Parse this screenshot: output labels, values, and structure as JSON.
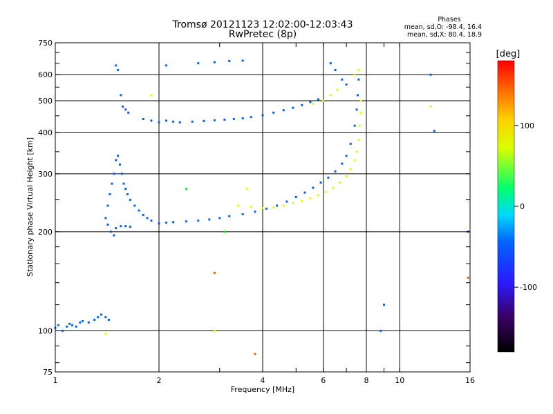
{
  "chart_data": {
    "type": "scatter",
    "title": "Tromsø 20121123 12:02:00-12:03:43",
    "subtitle": "RwPretec (8p)",
    "info": {
      "heading": "Phases",
      "line1": "mean, sd,O: -98.4, 16.4",
      "line2": "mean, sd,X:  80.4, 18.9"
    },
    "xlabel": "Frequency [MHz]",
    "ylabel": "Stationary phase Virtual Height [km]",
    "xscale": "log",
    "yscale": "log",
    "xlim": [
      1,
      16
    ],
    "ylim": [
      75,
      750
    ],
    "x_major_ticks": [
      1,
      2,
      4,
      6,
      8,
      10,
      16
    ],
    "x_tick_labels": [
      "1",
      "2",
      "4",
      "6",
      "8",
      "10",
      "16"
    ],
    "y_ticks": [
      75,
      100,
      200,
      300,
      400,
      500,
      600,
      750
    ],
    "y_tick_labels": [
      "75",
      "100",
      "200",
      "300",
      "400",
      "500",
      "600",
      "750"
    ],
    "grid": true,
    "colorbar": {
      "label": "[deg]",
      "range": [
        -180,
        180
      ],
      "ticks": [
        100,
        0,
        -100
      ],
      "tick_labels": [
        "100",
        "0",
        "-100"
      ]
    },
    "series": [
      {
        "color_phase": -110,
        "points": [
          [
            1.0,
            102
          ],
          [
            1.02,
            104
          ],
          [
            1.05,
            100
          ],
          [
            1.08,
            103
          ],
          [
            1.1,
            105
          ],
          [
            1.12,
            104
          ],
          [
            1.15,
            103
          ],
          [
            1.18,
            106
          ],
          [
            1.2,
            107
          ],
          [
            1.25,
            106
          ],
          [
            1.3,
            108
          ],
          [
            1.33,
            110
          ],
          [
            1.36,
            112
          ],
          [
            1.4,
            110
          ],
          [
            1.43,
            108
          ],
          [
            1.5,
            640
          ],
          [
            1.52,
            620
          ],
          [
            1.55,
            520
          ],
          [
            1.57,
            480
          ],
          [
            1.6,
            470
          ],
          [
            1.63,
            460
          ],
          [
            1.8,
            440
          ],
          [
            1.9,
            435
          ],
          [
            2.0,
            430
          ],
          [
            2.1,
            435
          ],
          [
            2.2,
            432
          ],
          [
            2.3,
            430
          ],
          [
            2.5,
            432
          ],
          [
            2.7,
            434
          ],
          [
            2.9,
            436
          ],
          [
            3.1,
            438
          ],
          [
            3.3,
            440
          ],
          [
            3.5,
            442
          ],
          [
            3.7,
            446
          ],
          [
            4.0,
            452
          ],
          [
            4.3,
            460
          ],
          [
            4.6,
            468
          ],
          [
            4.9,
            476
          ],
          [
            5.2,
            485
          ],
          [
            5.5,
            495
          ],
          [
            5.8,
            505
          ],
          [
            2.1,
            640
          ],
          [
            2.6,
            650
          ],
          [
            2.9,
            655
          ],
          [
            3.2,
            660
          ],
          [
            3.5,
            662
          ],
          [
            1.4,
            220
          ],
          [
            1.42,
            240
          ],
          [
            1.44,
            260
          ],
          [
            1.46,
            280
          ],
          [
            1.48,
            300
          ],
          [
            1.5,
            330
          ],
          [
            1.52,
            340
          ],
          [
            1.54,
            320
          ],
          [
            1.56,
            300
          ],
          [
            1.58,
            280
          ],
          [
            1.6,
            270
          ],
          [
            1.62,
            260
          ],
          [
            1.65,
            250
          ],
          [
            1.7,
            240
          ],
          [
            1.75,
            232
          ],
          [
            1.8,
            225
          ],
          [
            1.85,
            220
          ],
          [
            1.9,
            216
          ],
          [
            2.0,
            212
          ],
          [
            2.1,
            213
          ],
          [
            2.2,
            214
          ],
          [
            2.4,
            215
          ],
          [
            2.6,
            216
          ],
          [
            2.8,
            218
          ],
          [
            3.0,
            220
          ],
          [
            3.2,
            223
          ],
          [
            3.5,
            226
          ],
          [
            3.8,
            230
          ],
          [
            4.1,
            235
          ],
          [
            4.4,
            240
          ],
          [
            4.7,
            247
          ],
          [
            5.0,
            255
          ],
          [
            5.3,
            263
          ],
          [
            5.6,
            272
          ],
          [
            5.9,
            282
          ],
          [
            6.2,
            292
          ],
          [
            6.5,
            305
          ],
          [
            6.8,
            322
          ],
          [
            7.0,
            340
          ],
          [
            7.2,
            370
          ],
          [
            7.4,
            420
          ],
          [
            7.5,
            470
          ],
          [
            7.55,
            520
          ],
          [
            7.6,
            580
          ],
          [
            1.42,
            210
          ],
          [
            1.45,
            200
          ],
          [
            1.48,
            195
          ],
          [
            1.5,
            205
          ],
          [
            1.55,
            208
          ],
          [
            1.6,
            208
          ],
          [
            1.65,
            207
          ],
          [
            6.3,
            650
          ],
          [
            6.5,
            620
          ],
          [
            6.8,
            580
          ],
          [
            7.0,
            560
          ],
          [
            12.3,
            600
          ],
          [
            12.6,
            405
          ],
          [
            8.8,
            100
          ],
          [
            9.0,
            120
          ],
          [
            15.8,
            200
          ]
        ]
      },
      {
        "color_phase": 90,
        "points": [
          [
            3.4,
            240
          ],
          [
            3.7,
            238
          ],
          [
            4.0,
            236
          ],
          [
            4.3,
            237
          ],
          [
            4.6,
            240
          ],
          [
            4.9,
            244
          ],
          [
            5.2,
            248
          ],
          [
            5.5,
            253
          ],
          [
            5.8,
            258
          ],
          [
            6.1,
            264
          ],
          [
            6.4,
            272
          ],
          [
            6.7,
            282
          ],
          [
            7.0,
            295
          ],
          [
            7.2,
            310
          ],
          [
            7.4,
            330
          ],
          [
            7.5,
            350
          ],
          [
            7.6,
            380
          ],
          [
            7.65,
            420
          ],
          [
            7.7,
            460
          ],
          [
            7.72,
            500
          ],
          [
            5.6,
            490
          ],
          [
            6.0,
            500
          ],
          [
            6.3,
            520
          ],
          [
            6.6,
            540
          ],
          [
            7.4,
            600
          ],
          [
            7.6,
            620
          ],
          [
            12.3,
            480
          ],
          [
            1.9,
            520
          ],
          [
            3.6,
            270
          ],
          [
            2.9,
            100
          ],
          [
            1.4,
            98
          ]
        ]
      },
      {
        "color_phase": 10,
        "points": [
          [
            2.4,
            270
          ],
          [
            3.1,
            200
          ]
        ]
      },
      {
        "color_phase": 150,
        "points": [
          [
            3.8,
            85
          ],
          [
            2.9,
            150
          ],
          [
            15.8,
            145
          ]
        ]
      }
    ]
  }
}
